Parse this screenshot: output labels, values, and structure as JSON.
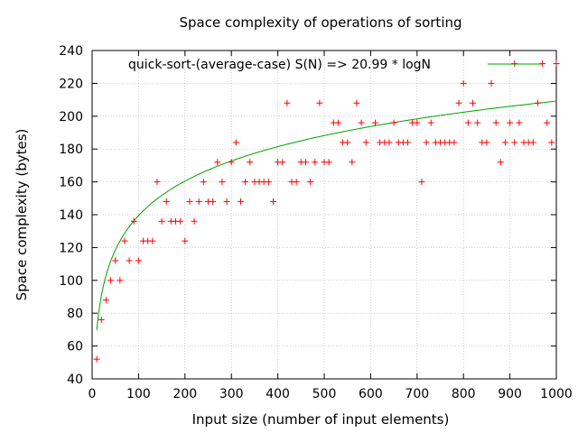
{
  "chart_data": {
    "type": "scatter",
    "title": "Space complexity of operations of sorting",
    "xlabel": "Input size (number of input elements)",
    "ylabel": "Space complexity (bytes)",
    "xlim": [
      0,
      1000
    ],
    "ylim": [
      40,
      240
    ],
    "xticks": [
      0,
      100,
      200,
      300,
      400,
      500,
      600,
      700,
      800,
      900,
      1000
    ],
    "yticks": [
      40,
      60,
      80,
      100,
      120,
      140,
      160,
      180,
      200,
      220,
      240
    ],
    "grid": true,
    "legend_position": "top",
    "legend_label": "quick-sort-(average-case) S(N) => 20.99 * logN",
    "colors": {
      "points": "#ff0000",
      "fit": "#00a000",
      "grid": "#a0a0a0"
    },
    "fit": {
      "type": "log",
      "coefficient": 20.99,
      "x_start": 10,
      "x_end": 1000
    },
    "points": [
      [
        10,
        52
      ],
      [
        20,
        76
      ],
      [
        30,
        88
      ],
      [
        40,
        100
      ],
      [
        50,
        112
      ],
      [
        60,
        100
      ],
      [
        70,
        124
      ],
      [
        80,
        112
      ],
      [
        90,
        136
      ],
      [
        100,
        112
      ],
      [
        110,
        124
      ],
      [
        120,
        124
      ],
      [
        130,
        124
      ],
      [
        140,
        160
      ],
      [
        150,
        136
      ],
      [
        160,
        148
      ],
      [
        170,
        136
      ],
      [
        180,
        136
      ],
      [
        190,
        136
      ],
      [
        200,
        124
      ],
      [
        210,
        148
      ],
      [
        220,
        136
      ],
      [
        230,
        148
      ],
      [
        240,
        160
      ],
      [
        250,
        148
      ],
      [
        260,
        148
      ],
      [
        270,
        172
      ],
      [
        280,
        160
      ],
      [
        290,
        148
      ],
      [
        300,
        172
      ],
      [
        310,
        184
      ],
      [
        320,
        148
      ],
      [
        330,
        160
      ],
      [
        340,
        172
      ],
      [
        350,
        160
      ],
      [
        360,
        160
      ],
      [
        370,
        160
      ],
      [
        380,
        160
      ],
      [
        390,
        148
      ],
      [
        400,
        172
      ],
      [
        410,
        172
      ],
      [
        420,
        208
      ],
      [
        430,
        160
      ],
      [
        440,
        160
      ],
      [
        450,
        172
      ],
      [
        460,
        172
      ],
      [
        470,
        160
      ],
      [
        480,
        172
      ],
      [
        490,
        208
      ],
      [
        500,
        172
      ],
      [
        510,
        172
      ],
      [
        520,
        196
      ],
      [
        530,
        196
      ],
      [
        540,
        184
      ],
      [
        550,
        184
      ],
      [
        560,
        172
      ],
      [
        570,
        208
      ],
      [
        580,
        196
      ],
      [
        590,
        184
      ],
      [
        610,
        196
      ],
      [
        620,
        184
      ],
      [
        630,
        184
      ],
      [
        640,
        184
      ],
      [
        650,
        196
      ],
      [
        660,
        184
      ],
      [
        670,
        184
      ],
      [
        680,
        184
      ],
      [
        690,
        196
      ],
      [
        700,
        196
      ],
      [
        710,
        160
      ],
      [
        720,
        184
      ],
      [
        730,
        196
      ],
      [
        740,
        184
      ],
      [
        750,
        184
      ],
      [
        760,
        184
      ],
      [
        770,
        184
      ],
      [
        780,
        184
      ],
      [
        790,
        208
      ],
      [
        800,
        220
      ],
      [
        810,
        196
      ],
      [
        820,
        208
      ],
      [
        830,
        196
      ],
      [
        840,
        184
      ],
      [
        850,
        184
      ],
      [
        860,
        220
      ],
      [
        870,
        196
      ],
      [
        880,
        172
      ],
      [
        890,
        184
      ],
      [
        900,
        196
      ],
      [
        910,
        232
      ],
      [
        910,
        184
      ],
      [
        920,
        196
      ],
      [
        930,
        184
      ],
      [
        940,
        184
      ],
      [
        950,
        184
      ],
      [
        960,
        208
      ],
      [
        970,
        232
      ],
      [
        980,
        196
      ],
      [
        990,
        184
      ],
      [
        1000,
        232
      ]
    ]
  }
}
